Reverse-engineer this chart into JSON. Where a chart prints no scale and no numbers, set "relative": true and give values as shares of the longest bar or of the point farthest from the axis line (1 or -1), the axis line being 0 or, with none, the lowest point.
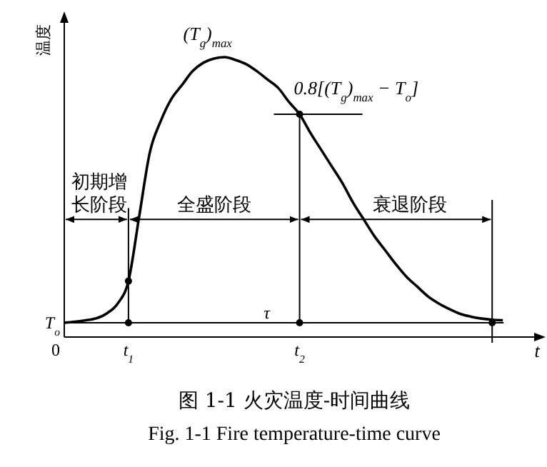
{
  "chart_data": {
    "type": "line",
    "relative": true,
    "xlabel": "t",
    "ylabel": "温度",
    "categories": [
      "0",
      null,
      null,
      null,
      null,
      null,
      "t$_{1}$",
      null,
      null,
      null,
      null,
      null,
      null,
      null,
      null,
      null,
      null,
      null,
      null,
      null,
      null,
      null,
      "t$_{2}$",
      null,
      null,
      null,
      null,
      null,
      null,
      null,
      null,
      null,
      null,
      null,
      null,
      null,
      null,
      null,
      null,
      null,
      null,
      null
    ],
    "series": [
      {
        "color": "#000000",
        "values": [
          0.051,
          0.055,
          0.06,
          0.067,
          0.085,
          0.12,
          0.2,
          0.43,
          0.66,
          0.77,
          0.85,
          0.9,
          0.95,
          0.98,
          0.995,
          1.0,
          0.99,
          0.975,
          0.95,
          0.92,
          0.89,
          0.84,
          0.796,
          0.73,
          0.67,
          0.61,
          0.55,
          0.48,
          0.42,
          0.36,
          0.31,
          0.26,
          0.215,
          0.18,
          0.145,
          0.12,
          0.1,
          0.083,
          0.073,
          0.066,
          0.062,
          0.06
        ]
      },
      {
        "type": "scatter",
        "color": "#000000",
        "marker": "circle",
        "values": [
          null,
          null,
          null,
          null,
          null,
          null,
          0.2,
          null,
          null,
          null,
          null,
          null,
          null,
          null,
          null,
          null,
          null,
          null,
          null,
          null,
          null,
          null,
          0.796,
          null,
          null,
          null,
          null,
          null,
          null,
          null,
          null,
          null,
          null,
          null,
          null,
          null,
          null,
          null,
          null,
          null,
          null,
          null
        ]
      },
      {
        "type": "scatter",
        "color": "#000000",
        "marker": "circle",
        "values": [
          null,
          null,
          null,
          null,
          null,
          null,
          0.051,
          null,
          null,
          null,
          null,
          null,
          null,
          null,
          null,
          null,
          null,
          null,
          null,
          null,
          null,
          null,
          0.051,
          null,
          null,
          null,
          null,
          null,
          null,
          null,
          null,
          null,
          null,
          null,
          null,
          null,
          null,
          null,
          null,
          null,
          0.051,
          null
        ]
      }
    ],
    "ref_lines": [
      {
        "axis": "y",
        "value": 0.051,
        "label": "T$_{o}$"
      }
    ],
    "annotations": [
      {
        "text": "(T$_{g}$)$_{max}$",
        "y": 1.0
      },
      {
        "text": "0.8[(T$_{g}$)$_{max}$ − T$_{o}$]",
        "x": "t$_{2}$",
        "y": 0.796
      },
      "初期增长阶段",
      "全盛阶段",
      "衰退阶段",
      "τ",
      "图 1-1 火灾温度-时间曲线",
      "Fig. 1-1 Fire temperature-time curve"
    ]
  }
}
